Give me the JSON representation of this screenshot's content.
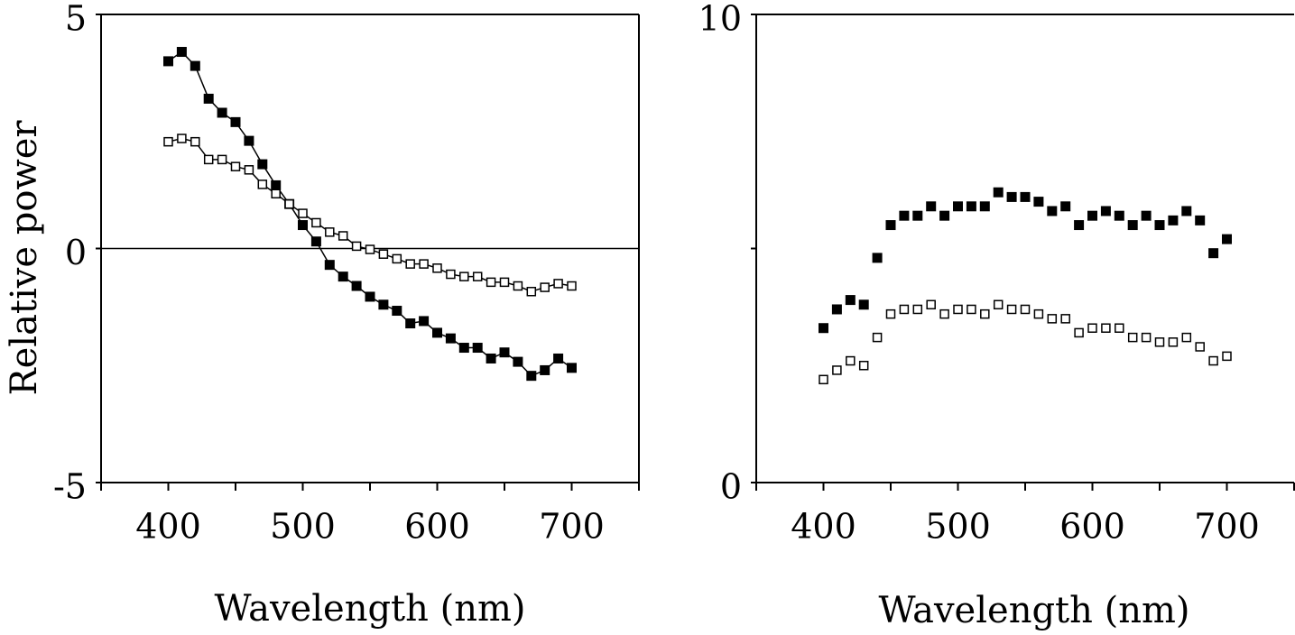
{
  "chart_data": [
    {
      "type": "scatter",
      "xlabel": "Wavelength (nm)",
      "ylabel": "Relative power",
      "xlim": [
        350,
        750
      ],
      "xticks": [
        400,
        500,
        600,
        700
      ],
      "xminor_ticks": [
        350,
        450,
        550,
        650,
        750
      ],
      "ylim": [
        -5,
        5
      ],
      "yticks": [
        -5,
        0,
        5
      ],
      "zero_line": true,
      "lines": true,
      "x": [
        400,
        410,
        420,
        430,
        440,
        450,
        460,
        470,
        480,
        490,
        500,
        510,
        520,
        530,
        540,
        550,
        560,
        570,
        580,
        590,
        600,
        610,
        620,
        630,
        640,
        650,
        660,
        670,
        680,
        690,
        700
      ],
      "series": [
        {
          "color": "#000000",
          "filled": true,
          "values": [
            4.0,
            4.2,
            3.9,
            3.2,
            2.9,
            2.7,
            2.3,
            1.8,
            1.35,
            0.95,
            0.5,
            0.15,
            -0.35,
            -0.6,
            -0.8,
            -1.03,
            -1.2,
            -1.33,
            -1.6,
            -1.55,
            -1.8,
            -1.92,
            -2.12,
            -2.12,
            -2.35,
            -2.22,
            -2.42,
            -2.72,
            -2.6,
            -2.35,
            -2.55
          ]
        },
        {
          "color": "#000000",
          "filled": false,
          "values": [
            2.28,
            2.35,
            2.28,
            1.9,
            1.9,
            1.75,
            1.68,
            1.37,
            1.17,
            0.95,
            0.75,
            0.55,
            0.35,
            0.27,
            0.05,
            -0.02,
            -0.12,
            -0.22,
            -0.33,
            -0.33,
            -0.42,
            -0.55,
            -0.6,
            -0.6,
            -0.72,
            -0.72,
            -0.8,
            -0.92,
            -0.83,
            -0.75,
            -0.8
          ]
        }
      ]
    },
    {
      "type": "scatter",
      "xlabel": "Wavelength (nm)",
      "xlim": [
        350,
        750
      ],
      "xticks": [
        400,
        500,
        600,
        700
      ],
      "xminor_ticks": [
        350,
        450,
        550,
        650,
        750
      ],
      "ylim": [
        0,
        10
      ],
      "yticks": [
        0,
        10
      ],
      "yminor_ticks": [
        5
      ],
      "zero_line": false,
      "lines": false,
      "x": [
        400,
        410,
        420,
        430,
        440,
        450,
        460,
        470,
        480,
        490,
        500,
        510,
        520,
        530,
        540,
        550,
        560,
        570,
        580,
        590,
        600,
        610,
        620,
        630,
        640,
        650,
        660,
        670,
        680,
        690,
        700
      ],
      "series": [
        {
          "color": "#000000",
          "filled": true,
          "values": [
            3.3,
            3.7,
            3.9,
            3.8,
            4.8,
            5.5,
            5.7,
            5.7,
            5.9,
            5.7,
            5.9,
            5.9,
            5.9,
            6.2,
            6.1,
            6.1,
            6.0,
            5.8,
            5.9,
            5.5,
            5.7,
            5.8,
            5.7,
            5.5,
            5.7,
            5.5,
            5.6,
            5.8,
            5.6,
            4.9,
            5.2
          ]
        },
        {
          "color": "#000000",
          "filled": false,
          "values": [
            2.2,
            2.4,
            2.6,
            2.5,
            3.1,
            3.6,
            3.7,
            3.7,
            3.8,
            3.6,
            3.7,
            3.7,
            3.6,
            3.8,
            3.7,
            3.7,
            3.6,
            3.5,
            3.5,
            3.2,
            3.3,
            3.3,
            3.3,
            3.1,
            3.1,
            3.0,
            3.0,
            3.1,
            2.9,
            2.6,
            2.7
          ]
        }
      ]
    }
  ]
}
